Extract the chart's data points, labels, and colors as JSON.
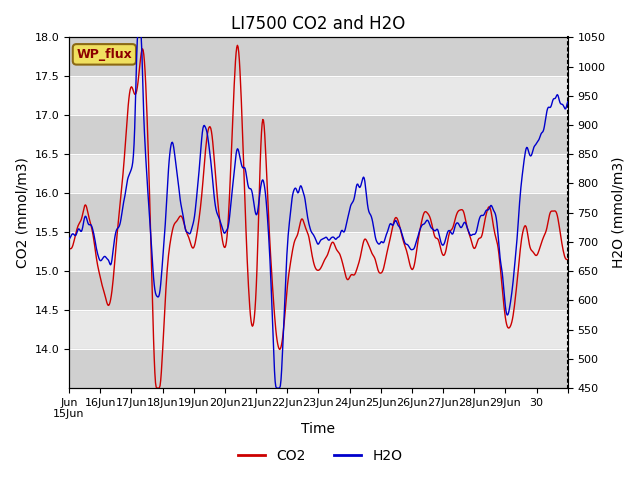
{
  "title": "LI7500 CO2 and H2O",
  "xlabel": "Time",
  "ylabel_left": "CO2 (mmol/m3)",
  "ylabel_right": "H2O (mmol/m3)",
  "site_label": "WP_flux",
  "co2_ylim": [
    13.5,
    18.0
  ],
  "h2o_ylim": [
    450,
    1050
  ],
  "x_tick_labels": [
    "Jun 15Jun",
    "16Jun",
    "17Jun",
    "18Jun",
    "19Jun",
    "20Jun",
    "21Jun",
    "22Jun",
    "23Jun",
    "24Jun",
    "25Jun",
    "26Jun",
    "27Jun",
    "28Jun",
    "29Jun",
    "30"
  ],
  "co2_color": "#cc0000",
  "h2o_color": "#0000cc",
  "background_color": "#ffffff",
  "plot_bg_color": "#e8e8e8",
  "band_color": "#d0d0d0",
  "site_label_bg": "#f0e060",
  "title_fontsize": 12,
  "axis_fontsize": 10,
  "tick_fontsize": 8,
  "legend_fontsize": 10
}
